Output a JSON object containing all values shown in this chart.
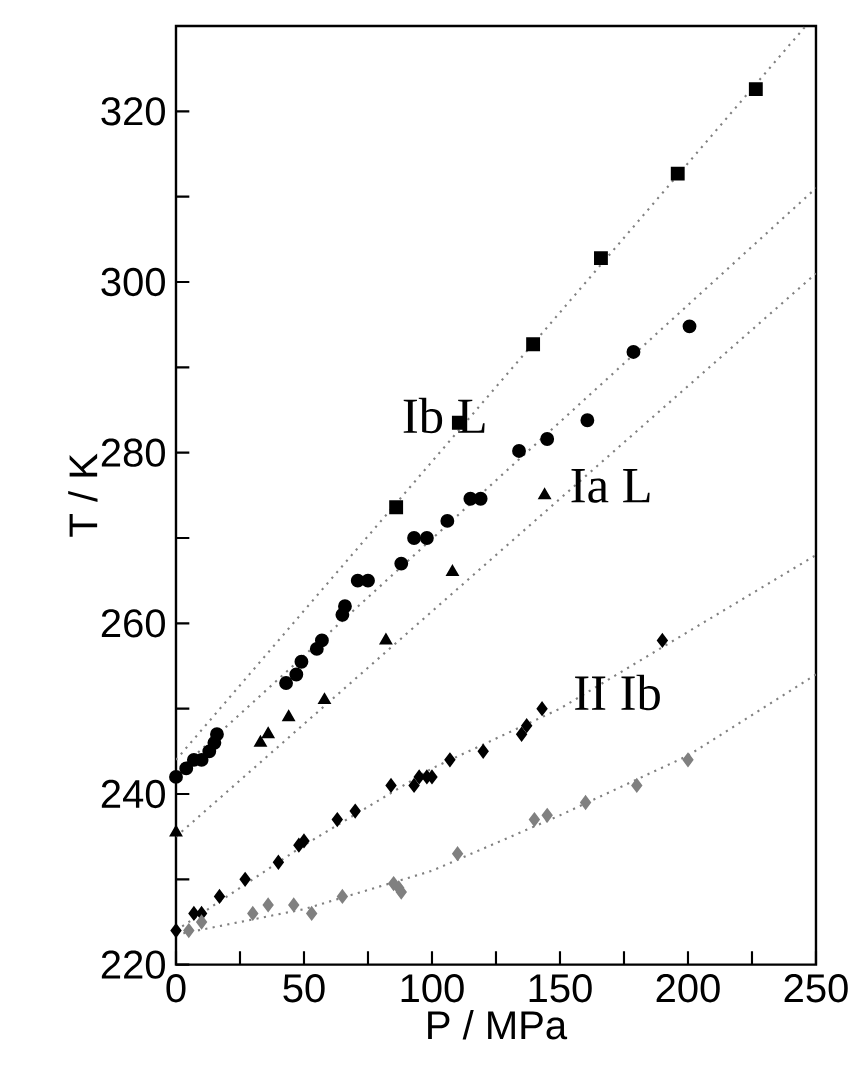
{
  "chart_data": {
    "type": "scatter",
    "xlabel": "P / MPa",
    "ylabel": "T / K",
    "xlim": [
      0,
      250
    ],
    "ylim": [
      220,
      330
    ],
    "xticks": [
      0,
      {
        "value": 25,
        "label": null
      },
      50,
      {
        "value": 75,
        "label": null
      },
      100,
      {
        "value": 125,
        "label": null
      },
      150,
      {
        "value": 175,
        "label": null
      },
      200,
      {
        "value": 225,
        "label": null
      },
      250
    ],
    "yticks": [
      220,
      {
        "value": 230,
        "label": null
      },
      240,
      {
        "value": 250,
        "label": null
      },
      260,
      {
        "value": 270,
        "label": null
      },
      280,
      {
        "value": 290,
        "label": null
      },
      300,
      {
        "value": 310,
        "label": null
      },
      320
    ],
    "grid": false,
    "series": [
      {
        "color": "#000000",
        "marker": "square",
        "x": [
          86,
          110.5,
          139.5,
          166,
          196,
          226.5
        ],
        "values": [
          273.6,
          283.5,
          292.7,
          302.8,
          312.7,
          322.6
        ]
      },
      {
        "color": "#000000",
        "marker": "circle",
        "x": [
          0,
          4,
          7,
          10,
          13,
          15,
          16,
          43,
          47,
          49,
          55,
          57,
          65,
          66,
          71,
          75,
          88,
          93,
          98,
          106,
          115,
          119,
          134,
          145,
          160.7,
          178.7,
          200.6
        ],
        "values": [
          242,
          243,
          244,
          244,
          245,
          246,
          247,
          253,
          254,
          255.5,
          257,
          258,
          261,
          262,
          265,
          265,
          267,
          270,
          270,
          272,
          274.6,
          274.6,
          280.2,
          281.6,
          283.8,
          291.8,
          294.8
        ]
      },
      {
        "color": "#000000",
        "marker": "triangle",
        "x": [
          0,
          33,
          36,
          44,
          58,
          82,
          108,
          144
        ],
        "values": [
          235.5,
          246,
          247,
          249,
          251,
          258,
          266,
          275
        ]
      },
      {
        "color": "#000000",
        "marker": "diamond",
        "x": [
          0,
          7,
          10,
          17,
          27,
          40,
          48,
          50,
          63,
          70,
          84,
          93,
          95,
          98,
          100,
          107,
          120,
          135,
          137,
          143,
          190
        ],
        "values": [
          224,
          226,
          226,
          228,
          230,
          232,
          234,
          234.5,
          237,
          238,
          241,
          241,
          242,
          242,
          242,
          244,
          245,
          247,
          248,
          250,
          258
        ]
      },
      {
        "color": "#808080",
        "marker": "diamond",
        "x": [
          5,
          10,
          30,
          36,
          46,
          53,
          65,
          85,
          87,
          88,
          110,
          140,
          145,
          160,
          180,
          200
        ],
        "values": [
          224,
          225,
          226,
          227,
          227,
          226,
          228,
          229.5,
          229,
          228.5,
          233,
          237,
          237.5,
          239,
          241,
          244
        ]
      },
      {
        "type": "line",
        "color": "#808080",
        "marker": "none",
        "line_style": "dotted",
        "x": [
          0,
          246
        ],
        "values": [
          244,
          330
        ]
      },
      {
        "type": "line",
        "color": "#808080",
        "marker": "none",
        "line_style": "dotted",
        "x": [
          0,
          250
        ],
        "values": [
          242.5,
          311
        ]
      },
      {
        "type": "line",
        "color": "#808080",
        "marker": "none",
        "line_style": "dotted",
        "x": [
          0,
          250
        ],
        "values": [
          235,
          301
        ]
      },
      {
        "type": "line",
        "color": "#808080",
        "marker": "none",
        "line_style": "dotted",
        "x": [
          0,
          50,
          100,
          150,
          200,
          250
        ],
        "values": [
          224,
          234,
          243,
          250,
          259,
          268
        ]
      },
      {
        "type": "line",
        "color": "#808080",
        "marker": "none",
        "line_style": "dotted",
        "x": [
          0,
          50,
          100,
          150,
          200,
          250
        ],
        "values": [
          223.5,
          226.5,
          231,
          237.5,
          244.5,
          254
        ]
      }
    ],
    "annotations": [
      "Ib L",
      "Ia L",
      "II Ib"
    ]
  }
}
